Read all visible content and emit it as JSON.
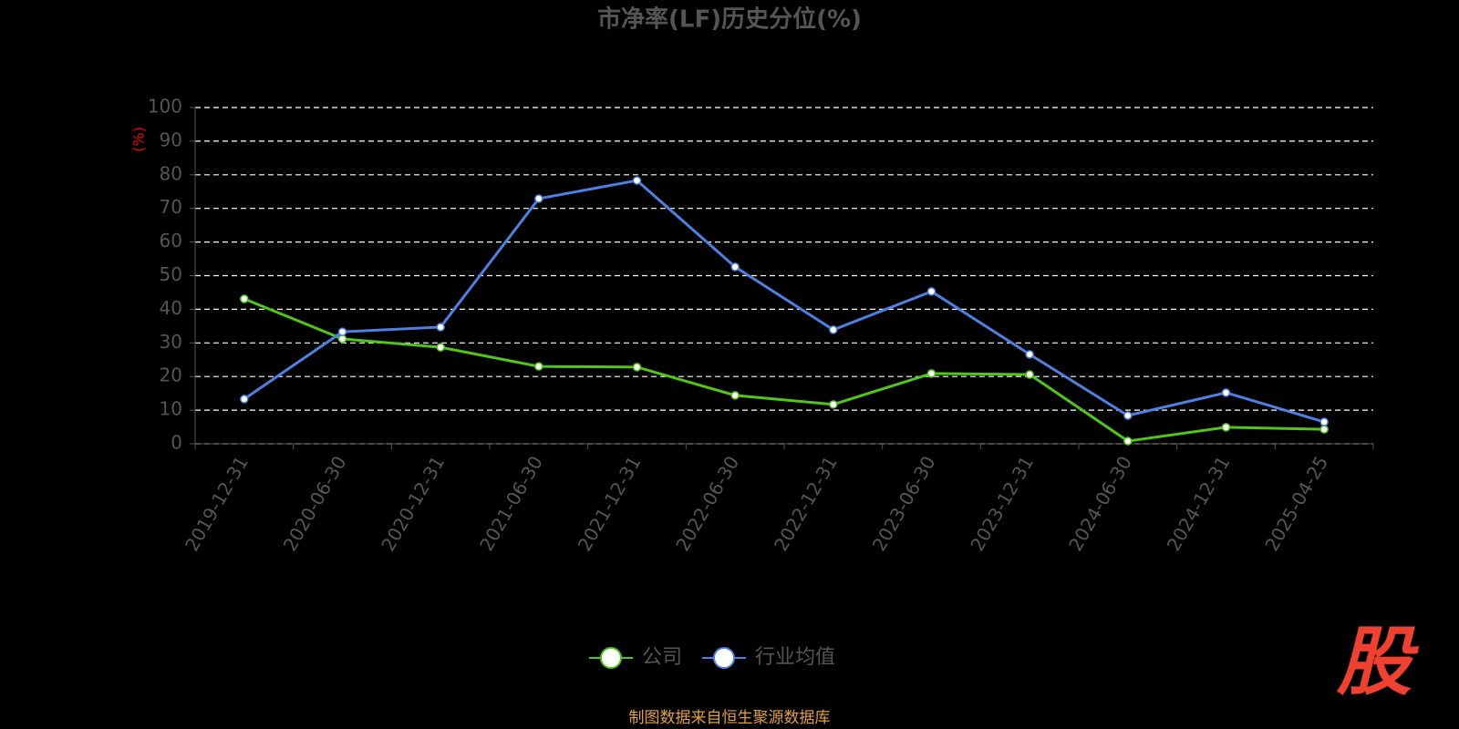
{
  "chart_data": {
    "type": "line",
    "title": "市净率(LF)历史分位(%)",
    "y_label": "(%)",
    "categories": [
      "2019-12-31",
      "2020-06-30",
      "2020-12-31",
      "2021-06-30",
      "2021-12-31",
      "2022-06-30",
      "2022-12-31",
      "2023-06-30",
      "2023-12-31",
      "2024-06-30",
      "2024-12-31",
      "2025-04-25"
    ],
    "series": [
      {
        "name": "公司",
        "color": "#52c41a",
        "values": [
          43.1,
          31.2,
          28.7,
          23.0,
          22.8,
          14.4,
          11.7,
          20.9,
          20.6,
          0.8,
          4.9,
          4.3
        ]
      },
      {
        "name": "行业均值",
        "color": "#4e80e0",
        "values": [
          13.3,
          33.3,
          34.7,
          72.9,
          78.3,
          52.6,
          33.9,
          45.3,
          26.6,
          8.4,
          15.2,
          6.5
        ]
      }
    ],
    "ylim": [
      0,
      100
    ],
    "yticks": [
      0,
      10,
      20,
      30,
      40,
      50,
      60,
      70,
      80,
      90,
      100
    ],
    "grid": true,
    "legend": "bottom",
    "source": "制图数据来自恒生聚源数据库",
    "logo": "股"
  }
}
